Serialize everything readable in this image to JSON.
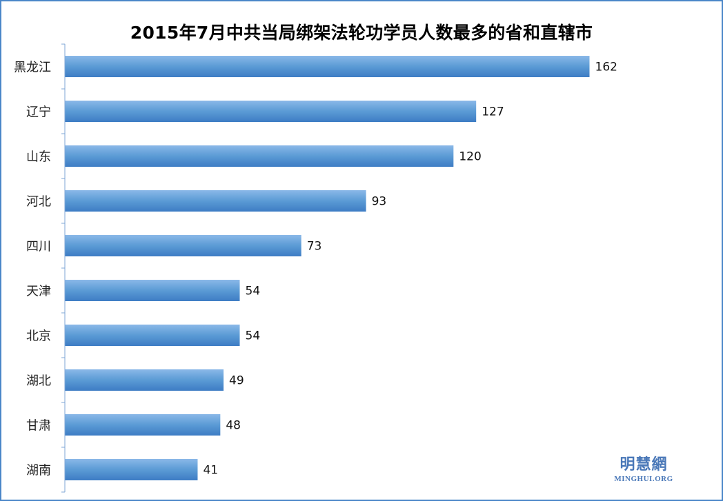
{
  "chart_data": {
    "type": "bar",
    "orientation": "horizontal",
    "title": "2015年7月中共当局绑架法轮功学员人数最多的省和直辖市",
    "categories": [
      "黑龙江",
      "辽宁",
      "山东",
      "河北",
      "四川",
      "天津",
      "北京",
      "湖北",
      "甘肃",
      "湖南"
    ],
    "values": [
      162,
      127,
      120,
      93,
      73,
      54,
      54,
      49,
      48,
      41
    ],
    "xlim": [
      0,
      180
    ],
    "grid": false,
    "data_labels": true,
    "bar_color": "#5b9bd5",
    "bar_color_light": "#8ab8e8",
    "bar_color_dark": "#3d7cc4"
  },
  "watermark": {
    "cn": "明慧網",
    "en": "MINGHUI.ORG"
  },
  "colors": {
    "border": "#4a86c8",
    "axis": "#7ea6d6",
    "watermark": "#4a78b8"
  }
}
